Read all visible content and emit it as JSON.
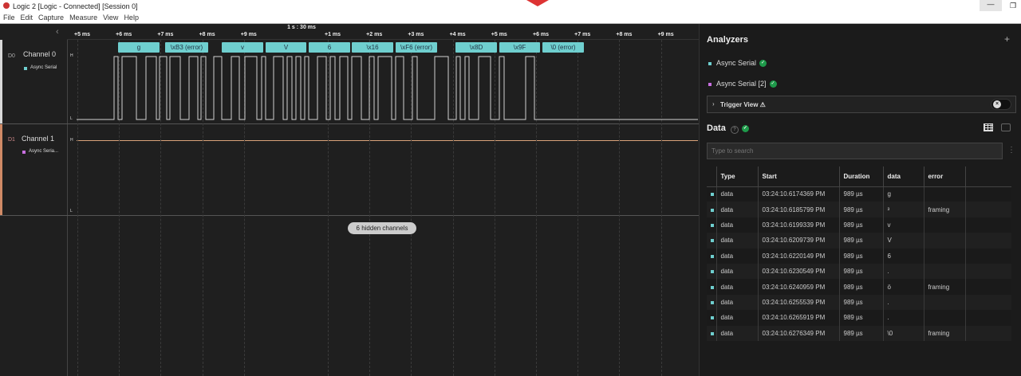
{
  "window": {
    "title": "Logic 2 [Logic - Connected] [Session 0]",
    "minimize": "—",
    "restore": "❐"
  },
  "menu": [
    "File",
    "Edit",
    "Capture",
    "Measure",
    "View",
    "Help"
  ],
  "ruler": {
    "center_label": "1 s : 30 ms",
    "ticks": [
      "+5 ms",
      "+6 ms",
      "+7 ms",
      "+8 ms",
      "+9 ms",
      "+1 ms",
      "+2 ms",
      "+3 ms",
      "+4 ms",
      "+5 ms",
      "+6 ms",
      "+7 ms",
      "+8 ms",
      "+9 ms"
    ]
  },
  "channels": [
    {
      "id": "D0",
      "name": "Channel 0",
      "analyzer": "Async Serial",
      "color": "#6fcfcf",
      "high": "H",
      "low": "L"
    },
    {
      "id": "D1",
      "name": "Channel 1",
      "analyzer": "Async Seria...",
      "color": "#c86fe0",
      "high": "H",
      "low": "L",
      "line_color": "#d9a27a"
    }
  ],
  "annotations": [
    "g",
    "\\xB3 (error)",
    "v",
    "V",
    "6",
    "\\x16",
    "\\xF6 (error)",
    "\\x8D",
    "\\x9F",
    "\\0 (error)"
  ],
  "hidden_channels": "6 hidden channels",
  "panel": {
    "analyzers_title": "Analyzers",
    "add": "+",
    "analyzers": [
      {
        "name": "Async Serial",
        "color": "#6fcfcf"
      },
      {
        "name": "Async Serial [2]",
        "color": "#c86fe0"
      }
    ],
    "trigger_view": "Trigger View ⚠",
    "data_title": "Data",
    "search_placeholder": "Type to search",
    "columns": [
      "Type",
      "Start",
      "Duration",
      "data",
      "error"
    ],
    "rows": [
      [
        "data",
        "03:24:10.6174369 PM",
        "989 µs",
        "g",
        ""
      ],
      [
        "data",
        "03:24:10.6185799 PM",
        "989 µs",
        "³",
        "framing"
      ],
      [
        "data",
        "03:24:10.6199339 PM",
        "989 µs",
        "v",
        ""
      ],
      [
        "data",
        "03:24:10.6209739 PM",
        "989 µs",
        "V",
        ""
      ],
      [
        "data",
        "03:24:10.6220149 PM",
        "989 µs",
        "6",
        ""
      ],
      [
        "data",
        "03:24:10.6230549 PM",
        "989 µs",
        ".",
        ""
      ],
      [
        "data",
        "03:24:10.6240959 PM",
        "989 µs",
        "ö",
        "framing"
      ],
      [
        "data",
        "03:24:10.6255539 PM",
        "989 µs",
        ".",
        ""
      ],
      [
        "data",
        "03:24:10.6265919 PM",
        "989 µs",
        ".",
        ""
      ],
      [
        "data",
        "03:24:10.6276349 PM",
        "989 µs",
        "\\0",
        "framing"
      ]
    ]
  }
}
